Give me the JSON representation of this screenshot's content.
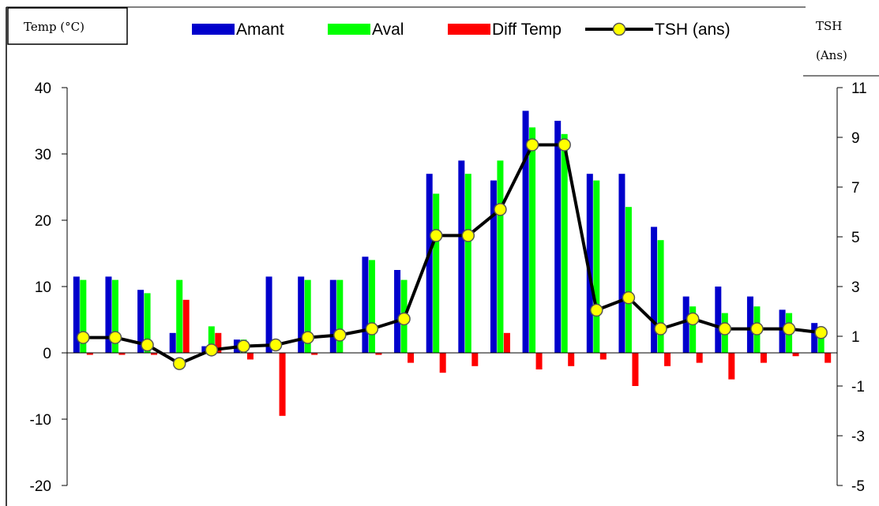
{
  "chart_data": {
    "type": "bar",
    "title": "",
    "y_left_label": "Temp  (°C)",
    "y_right_label_line1": "TSH",
    "y_right_label_line2": "(Ans)",
    "y_left_range": [
      -20,
      40
    ],
    "y_left_ticks": [
      40,
      30,
      20,
      10,
      0,
      -10,
      -20
    ],
    "y_right_range": [
      -5,
      11
    ],
    "y_right_ticks": [
      11,
      9,
      7,
      5,
      3,
      1,
      -1,
      -3,
      -5
    ],
    "n_categories": 24,
    "grid": false,
    "legend_position": "top",
    "series": [
      {
        "name": "Amant",
        "kind": "bar",
        "axis": "left",
        "color": "#0000cc",
        "values": [
          11.5,
          11.5,
          9.5,
          3,
          1,
          2,
          11.5,
          11.5,
          11,
          14.5,
          12.5,
          27,
          29,
          26,
          36.5,
          35,
          27,
          27,
          19,
          8.5,
          10,
          8.5,
          6.5,
          4.5
        ]
      },
      {
        "name": "Aval",
        "kind": "bar",
        "axis": "left",
        "color": "#00ff00",
        "values": [
          11,
          11,
          9,
          11,
          4,
          2,
          0,
          11,
          11,
          14,
          11,
          24,
          27,
          29,
          34,
          33,
          26,
          22,
          17,
          7,
          6,
          7,
          6,
          3.5
        ]
      },
      {
        "name": "Diff Temp",
        "kind": "bar",
        "axis": "left",
        "color": "#ff0000",
        "values": [
          -0.3,
          -0.3,
          -0.3,
          8,
          3,
          -1,
          -9.5,
          -0.3,
          0,
          -0.3,
          -1.5,
          -3,
          -2,
          3,
          -2.5,
          -2,
          -1,
          -5,
          -2,
          -1.5,
          -4,
          -1.5,
          -0.5,
          -1.5
        ]
      },
      {
        "name": "TSH (ans)",
        "kind": "line",
        "axis": "right",
        "color": "#000000",
        "marker_color": "#ffff00",
        "values": [
          0.95,
          0.95,
          0.65,
          -0.1,
          0.45,
          0.6,
          0.65,
          0.95,
          1.05,
          1.3,
          1.7,
          5.05,
          5.05,
          6.1,
          8.7,
          8.7,
          2.05,
          2.55,
          1.3,
          1.7,
          1.3,
          1.3,
          1.3,
          1.15
        ]
      }
    ]
  }
}
